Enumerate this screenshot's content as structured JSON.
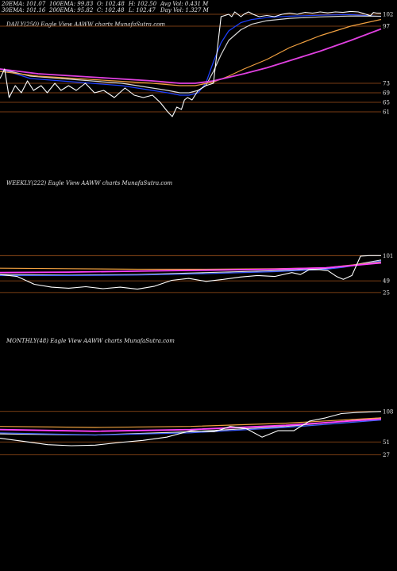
{
  "header": {
    "row1": [
      "20EMA: 101.07",
      "100EMA: 99.83",
      "O: 102.48",
      "H: 102.50",
      "Avg Vol: 0.431 M"
    ],
    "row2": [
      "30EMA: 101.16",
      "200EMA: 95.82",
      "C: 102.48",
      "L: 102.47",
      "Day Vol: 1.327 M"
    ]
  },
  "chart_data": [
    {
      "type": "line",
      "title": "DAILY(250) Eagle  View  AAWW charts MunafaSutra.com",
      "price_labels": [
        102,
        97,
        73,
        69,
        65,
        61
      ],
      "ylim": [
        58,
        104
      ],
      "series": [
        {
          "role": "price",
          "color": "#ffffff",
          "x": [
            0,
            3,
            6,
            10,
            14,
            18,
            22,
            27,
            31,
            36,
            40,
            45,
            50,
            56,
            62,
            68,
            75,
            82,
            88,
            94,
            100,
            105,
            110,
            113,
            116,
            119,
            121,
            123,
            126,
            130,
            135,
            140,
            145,
            150,
            152,
            154,
            156,
            158,
            160,
            163,
            166,
            170,
            175,
            180,
            185,
            190,
            195,
            200,
            205,
            210,
            215,
            220,
            225,
            230,
            235,
            238,
            240,
            243,
            245,
            247,
            250
          ],
          "values": [
            75,
            79,
            67,
            72,
            69,
            74,
            70,
            72,
            69,
            73,
            70,
            72,
            70,
            73,
            69,
            70,
            67,
            71,
            68,
            67,
            68,
            65,
            61,
            59,
            63,
            62,
            66,
            67,
            66,
            70,
            72,
            73,
            101,
            102,
            101,
            103,
            102,
            101,
            102,
            103,
            102,
            101,
            101.5,
            101,
            102,
            102.5,
            102,
            102.8,
            102.5,
            103,
            102.6,
            103,
            102.8,
            103.2,
            103,
            102.4,
            102,
            101.4,
            102.8,
            102.5,
            102.48
          ]
        },
        {
          "role": "20EMA",
          "color": "#1e40ff",
          "x": [
            0,
            20,
            40,
            60,
            80,
            100,
            110,
            118,
            124,
            130,
            135,
            140,
            145,
            150,
            158,
            165,
            175,
            190,
            210,
            230,
            250
          ],
          "values": [
            79,
            75,
            74,
            73,
            72,
            70,
            69,
            68,
            68,
            69,
            73,
            82,
            90,
            95,
            98.5,
            99.8,
            100.6,
            101.2,
            101.6,
            101.9,
            101.07
          ]
        },
        {
          "role": "30EMA",
          "color": "#d8d8d8",
          "x": [
            0,
            20,
            40,
            60,
            80,
            100,
            110,
            118,
            124,
            130,
            135,
            140,
            145,
            150,
            158,
            165,
            175,
            190,
            210,
            230,
            250
          ],
          "values": [
            79,
            76,
            75,
            74,
            73,
            71,
            70,
            69,
            69,
            70,
            72,
            78,
            85,
            91,
            95.5,
            97.8,
            99.3,
            100.3,
            100.9,
            101.3,
            101.16
          ]
        },
        {
          "role": "100EMA",
          "color": "#f0a040",
          "x": [
            0,
            25,
            50,
            75,
            100,
            118,
            128,
            140,
            150,
            160,
            175,
            190,
            210,
            230,
            250
          ],
          "values": [
            78,
            76,
            75,
            74,
            73,
            72,
            72,
            73.5,
            76,
            79,
            83,
            88,
            93,
            97,
            99.83
          ]
        },
        {
          "role": "200EMA",
          "color": "#e040e0",
          "x": [
            0,
            25,
            50,
            75,
            100,
            118,
            128,
            140,
            150,
            160,
            175,
            190,
            210,
            230,
            250
          ],
          "values": [
            79,
            77,
            76,
            75,
            74,
            73,
            73,
            74,
            75.5,
            77,
            79.5,
            82.5,
            86.5,
            91,
            95.82
          ]
        }
      ]
    },
    {
      "type": "line",
      "title": "WEEKLY(222) Eagle  View  AAWW charts MunafaSutra.com",
      "price_labels": [
        101,
        49,
        25
      ],
      "ylim": [
        15,
        108
      ],
      "series": [
        {
          "role": "price",
          "color": "#ffffff",
          "x": [
            0,
            10,
            20,
            30,
            40,
            50,
            60,
            70,
            80,
            90,
            100,
            110,
            120,
            130,
            140,
            150,
            160,
            170,
            175,
            180,
            186,
            191,
            196,
            200,
            205,
            210,
            215,
            222
          ],
          "values": [
            62,
            58,
            42,
            36,
            34,
            37,
            33,
            36,
            32,
            38,
            50,
            54,
            48,
            52,
            57,
            60,
            58,
            66,
            62,
            72,
            72,
            70,
            58,
            52,
            60,
            100,
            101,
            101
          ]
        },
        {
          "role": "ema-white",
          "color": "#e0e0e0",
          "x": [
            0,
            40,
            80,
            120,
            160,
            190,
            200,
            222
          ],
          "values": [
            62,
            61,
            62,
            66,
            70,
            74,
            78,
            92
          ]
        },
        {
          "role": "ema-blue",
          "color": "#4060ff",
          "x": [
            0,
            40,
            80,
            120,
            160,
            190,
            200,
            222
          ],
          "values": [
            60,
            60,
            61,
            64,
            68,
            73,
            77,
            90
          ]
        },
        {
          "role": "ema-orange",
          "color": "#f0a040",
          "x": [
            0,
            40,
            80,
            120,
            160,
            190,
            200,
            222
          ],
          "values": [
            75,
            74,
            73,
            73,
            74,
            76,
            80,
            88
          ]
        },
        {
          "role": "ema-magenta",
          "color": "#ff40ff",
          "x": [
            0,
            40,
            80,
            120,
            160,
            190,
            200,
            222
          ],
          "values": [
            66,
            67,
            69,
            71,
            73,
            76,
            79,
            86
          ]
        }
      ]
    },
    {
      "type": "line",
      "title": "MONTHLY(48) Eagle  View  AAWW charts MunafaSutra.com",
      "price_labels": [
        108,
        51,
        27
      ],
      "ylim": [
        10,
        118
      ],
      "series": [
        {
          "role": "price",
          "color": "#ffffff",
          "x": [
            0,
            3,
            6,
            9,
            12,
            15,
            18,
            21,
            24,
            27,
            29,
            31,
            33,
            35,
            37,
            39,
            41,
            43,
            45,
            48
          ],
          "values": [
            58,
            52,
            46,
            44,
            45,
            50,
            54,
            60,
            72,
            70,
            80,
            76,
            60,
            72,
            72,
            90,
            96,
            104,
            106,
            108
          ]
        },
        {
          "role": "ema-white",
          "color": "#e0e0e0",
          "x": [
            0,
            12,
            24,
            36,
            48
          ],
          "values": [
            66,
            64,
            70,
            80,
            96
          ]
        },
        {
          "role": "ema-blue",
          "color": "#4060ff",
          "x": [
            0,
            12,
            24,
            36,
            48
          ],
          "values": [
            68,
            64,
            68,
            78,
            92
          ]
        },
        {
          "role": "ema-magenta",
          "color": "#ff40ff",
          "x": [
            0,
            12,
            24,
            36,
            48
          ],
          "values": [
            74,
            71,
            74,
            82,
            94
          ]
        },
        {
          "role": "ema-orange",
          "color": "#f0a040",
          "x": [
            0,
            12,
            24,
            36,
            48
          ],
          "values": [
            80,
            78,
            80,
            86,
            96
          ]
        }
      ]
    }
  ]
}
